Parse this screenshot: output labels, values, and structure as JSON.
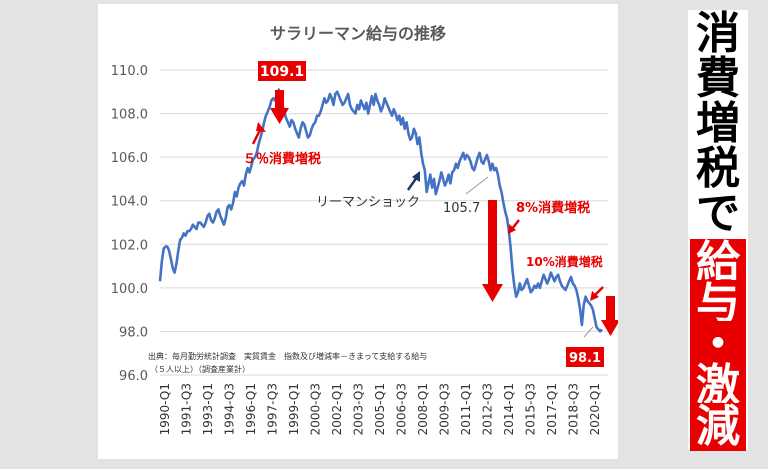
{
  "chart_data": {
    "type": "line",
    "title": "サラリーマン給与の推移",
    "ylim": [
      96.0,
      110.0
    ],
    "yticks": [
      "96.0",
      "98.0",
      "100.0",
      "102.0",
      "104.0",
      "106.0",
      "108.0",
      "110.0"
    ],
    "xticks": [
      "1990-Q1",
      "1991-Q3",
      "1993-Q1",
      "1994-Q3",
      "1996-Q1",
      "1997-Q3",
      "1999-Q1",
      "2000-Q3",
      "2002-Q1",
      "2003-Q3",
      "2005-Q1",
      "2006-Q3",
      "2008-Q1",
      "2009-Q3",
      "2011-Q1",
      "2012-Q3",
      "2014-Q1",
      "2015-Q3",
      "2017-Q1",
      "2018-Q3",
      "2020-Q1"
    ],
    "grid": "horizontal",
    "series": [
      {
        "color": "#4472c4",
        "x_start": "1990-Q1",
        "frequency": "monthly",
        "values": [
          100.3,
          101.2,
          101.8,
          101.9,
          101.9,
          101.7,
          101.3,
          100.9,
          100.7,
          101.1,
          101.7,
          102.2,
          102.3,
          102.5,
          102.4,
          102.6,
          102.6,
          102.7,
          102.9,
          102.8,
          102.7,
          103.0,
          103.0,
          102.9,
          102.8,
          103.0,
          103.3,
          103.4,
          103.1,
          103.0,
          103.2,
          103.5,
          103.6,
          103.3,
          103.1,
          102.9,
          103.2,
          103.7,
          103.8,
          103.6,
          103.9,
          104.4,
          104.2,
          104.6,
          104.8,
          104.9,
          104.7,
          105.2,
          105.5,
          105.3,
          105.6,
          105.9,
          106.0,
          106.2,
          106.6,
          106.9,
          107.2,
          107.6,
          107.9,
          108.1,
          108.3,
          108.6,
          108.7,
          108.6,
          108.9,
          109.1,
          108.8,
          108.4,
          108.1,
          107.8,
          107.6,
          107.4,
          107.7,
          107.6,
          107.3,
          107.1,
          106.9,
          107.3,
          107.6,
          107.5,
          107.2,
          106.9,
          107.0,
          107.3,
          107.5,
          107.6,
          107.9,
          107.9,
          108.1,
          108.4,
          108.7,
          108.5,
          108.6,
          108.9,
          108.7,
          108.4,
          108.9,
          109.0,
          108.8,
          108.6,
          108.4,
          108.5,
          108.7,
          108.9,
          108.4,
          108.2,
          108.1,
          108.0,
          108.4,
          108.2,
          108.6,
          108.4,
          108.2,
          108.5,
          108.0,
          108.4,
          108.8,
          108.4,
          108.9,
          108.6,
          108.4,
          108.1,
          108.3,
          108.7,
          108.5,
          108.3,
          108.1,
          107.9,
          108.2,
          108.0,
          107.7,
          107.9,
          107.5,
          107.8,
          107.3,
          107.6,
          107.1,
          106.8,
          106.9,
          107.3,
          107.1,
          106.6,
          106.9,
          106.2,
          105.7,
          105.4,
          104.4,
          104.8,
          105.2,
          104.6,
          105.0,
          104.3,
          104.6,
          104.9,
          105.3,
          105.0,
          104.7,
          104.9,
          105.2,
          104.8,
          105.3,
          105.4,
          105.7,
          105.5,
          105.8,
          106.0,
          106.2,
          105.9,
          106.1,
          106.0,
          105.8,
          105.5,
          105.4,
          105.7,
          106.0,
          106.2,
          105.8,
          105.7,
          105.9,
          106.1,
          105.8,
          105.4,
          105.7,
          105.4,
          105.5,
          105.2,
          104.7,
          104.4,
          103.9,
          103.5,
          103.2,
          102.6,
          101.8,
          100.8,
          100.1,
          99.6,
          99.8,
          100.2,
          99.9,
          100.0,
          100.2,
          100.4,
          100.1,
          99.8,
          99.9,
          100.1,
          100.0,
          100.2,
          100.0,
          100.3,
          100.6,
          100.4,
          100.2,
          100.4,
          100.7,
          100.5,
          100.3,
          100.5,
          100.6,
          100.3,
          100.1,
          100.0,
          99.9,
          100.1,
          100.3,
          100.5,
          100.2,
          100.1,
          99.9,
          99.5,
          99.0,
          98.3,
          99.2,
          99.6,
          99.4,
          99.3,
          99.2,
          99.0,
          98.6,
          98.2,
          98.1,
          98.0,
          98.1
        ]
      }
    ],
    "annotations": {
      "peak_value": "109.1",
      "tax5": "５％消費増税",
      "lehman": "リーマンショック",
      "val_1057": "105.7",
      "tax8": "8%消費増税",
      "tax10": "10%消費増税",
      "last_value": "98.1",
      "source_line1": "出典：毎月勤労統計調査　実質賃金　指数及び増減率－きまって支給する給与",
      "source_line2": "（５人以上）（調査産業計）"
    }
  },
  "side_text": {
    "chars_black": [
      "消",
      "費",
      "増",
      "税",
      "で"
    ],
    "chars_red": [
      "給",
      "与",
      "・",
      "激",
      "減"
    ]
  },
  "colors": {
    "line": "#4472c4",
    "accent_red": "#e80000",
    "arrow_dark": "#1f3864"
  }
}
